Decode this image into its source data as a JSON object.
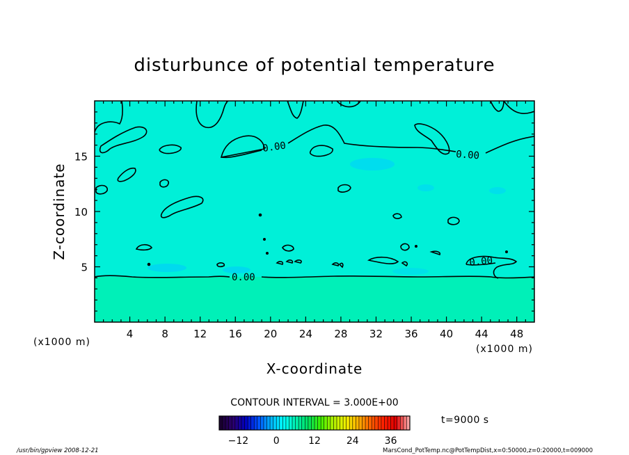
{
  "chart_data": {
    "type": "heatmap",
    "title": "disturbunce of potential temperature",
    "xlabel": "X-coordinate",
    "ylabel": "Z-coordinate",
    "x_unit": "(x1000 m)",
    "y_unit": "(x1000 m)",
    "xlim": [
      0,
      50
    ],
    "ylim": [
      0,
      20
    ],
    "x_ticks": [
      4,
      8,
      12,
      16,
      20,
      24,
      28,
      32,
      36,
      40,
      44,
      48
    ],
    "y_ticks": [
      5,
      10,
      15
    ],
    "contour_interval_label": "CONTOUR INTERVAL = 3.000E+00",
    "contour_labels": [
      {
        "text": "0.00",
        "x": 15.8,
        "y": 16.0
      },
      {
        "text": "0.00",
        "x": 41.8,
        "y": 15.4
      },
      {
        "text": "0.00",
        "x": 43.6,
        "y": 5.3
      },
      {
        "text": "0.00",
        "x": 17.5,
        "y": 4.2
      }
    ],
    "time_label": "t=9000 s",
    "colorbar": {
      "range": [
        -18,
        42
      ],
      "ticks": [
        -12,
        0,
        12,
        24,
        36
      ],
      "colors": [
        "#1a0030",
        "#2a0070",
        "#0000c0",
        "#0050ff",
        "#00b4ff",
        "#00ffff",
        "#00f0b0",
        "#00e060",
        "#40f000",
        "#b0f000",
        "#f0f000",
        "#ffb000",
        "#ff6000",
        "#ff2000",
        "#e00000",
        "#f8a0a0"
      ]
    },
    "field_color": "#00f0d8",
    "field_bottom_color": "#00f0b8",
    "contour_levels": [
      0
    ]
  },
  "footer": {
    "left": "/usr/bin/gpview   2008-12-21",
    "right": "MarsCond_PotTemp.nc@PotTempDist,x=0:50000,z=0:20000,t=009000"
  }
}
